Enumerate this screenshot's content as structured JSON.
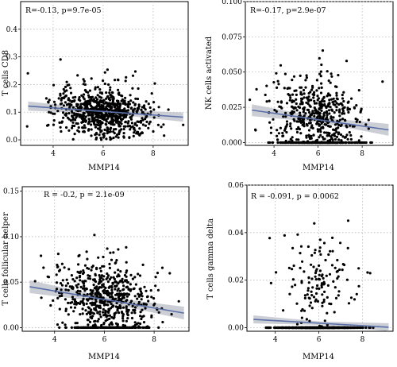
{
  "chart_data": [
    {
      "type": "scatter",
      "panel": "top-left",
      "stat_label": "R=-0.13, p=9.7e-05",
      "xlabel": "MMP14",
      "ylabel": "T cells CD8",
      "xlim": [
        2.7,
        9.4
      ],
      "ylim": [
        -0.02,
        0.5
      ],
      "xticks": [
        4,
        6,
        8
      ],
      "xtick_labels": [
        "4",
        "6",
        "8"
      ],
      "yticks": [
        0.0,
        0.1,
        0.2,
        0.3,
        0.4
      ],
      "ytick_labels": [
        "0.0",
        "0.1",
        "0.2",
        "0.3",
        "0.4"
      ],
      "fit": {
        "x": [
          3.0,
          9.2
        ],
        "y": [
          0.122,
          0.082
        ],
        "band_halfwidth": 0.012
      },
      "points": {
        "n": 750,
        "seed": 11,
        "mean_x": 6.0,
        "sd_x": 0.95,
        "base": 0.1,
        "sd": 0.055,
        "kind": "pos",
        "zero_frac": 0.0,
        "slope": -0.0065
      }
    },
    {
      "type": "scatter",
      "panel": "top-right",
      "stat_label": "R=-0.17, p=2.9e-07",
      "xlabel": "MMP14",
      "ylabel": "NK cells activated",
      "xlim": [
        2.7,
        9.4
      ],
      "ylim": [
        -0.002,
        0.1
      ],
      "xticks": [
        4,
        6,
        8
      ],
      "xtick_labels": [
        "4",
        "6",
        "8"
      ],
      "yticks": [
        0.0,
        0.025,
        0.05,
        0.075,
        0.1
      ],
      "ytick_labels": [
        "0.000",
        "0.025",
        "0.050",
        "0.075",
        "0.100"
      ],
      "fit": {
        "x": [
          3.0,
          9.2
        ],
        "y": [
          0.023,
          0.009
        ],
        "band_halfwidth": 0.003
      },
      "points": {
        "n": 700,
        "seed": 23,
        "mean_x": 6.0,
        "sd_x": 0.95,
        "base": 0.02,
        "sd": 0.016,
        "kind": "pos",
        "zero_frac": 0.3,
        "slope": -0.0022
      }
    },
    {
      "type": "scatter",
      "panel": "bottom-left",
      "stat_label": "R = -0.2, p = 2.1e-09",
      "xlabel": "MMP14",
      "ylabel": "T cells follicular helper",
      "xlim": [
        2.7,
        9.4
      ],
      "ylim": [
        -0.004,
        0.155
      ],
      "xticks": [
        4,
        6,
        8
      ],
      "xtick_labels": [
        "4",
        "6",
        "8"
      ],
      "yticks": [
        0.0,
        0.05,
        0.1,
        0.15
      ],
      "ytick_labels": [
        "0.00",
        "0.05",
        "0.10",
        "0.15"
      ],
      "fit": {
        "x": [
          3.0,
          9.2
        ],
        "y": [
          0.045,
          0.016
        ],
        "band_halfwidth": 0.005
      },
      "points": {
        "n": 750,
        "seed": 37,
        "mean_x": 6.0,
        "sd_x": 0.95,
        "base": 0.035,
        "sd": 0.024,
        "kind": "pos",
        "zero_frac": 0.22,
        "slope": -0.0045
      }
    },
    {
      "type": "scatter",
      "panel": "bottom-right",
      "stat_label": "R = -0.091, p = 0.0062",
      "xlabel": "MMP14",
      "ylabel": "T cells gamma delta",
      "xlim": [
        2.7,
        9.4
      ],
      "ylim": [
        -0.0015,
        0.06
      ],
      "xticks": [
        4,
        6,
        8
      ],
      "xtick_labels": [
        "4",
        "6",
        "8"
      ],
      "yticks": [
        0.0,
        0.02,
        0.04,
        0.06
      ],
      "ytick_labels": [
        "0.00",
        "0.02",
        "0.04",
        "0.06"
      ],
      "fit": {
        "x": [
          3.0,
          9.2
        ],
        "y": [
          0.0035,
          0.0002
        ],
        "band_halfwidth": 0.0012
      },
      "points": {
        "n": 700,
        "seed": 53,
        "mean_x": 6.0,
        "sd_x": 0.95,
        "base": 0.018,
        "sd": 0.012,
        "kind": "pos",
        "zero_frac": 0.8,
        "slope": -0.0005
      }
    }
  ]
}
